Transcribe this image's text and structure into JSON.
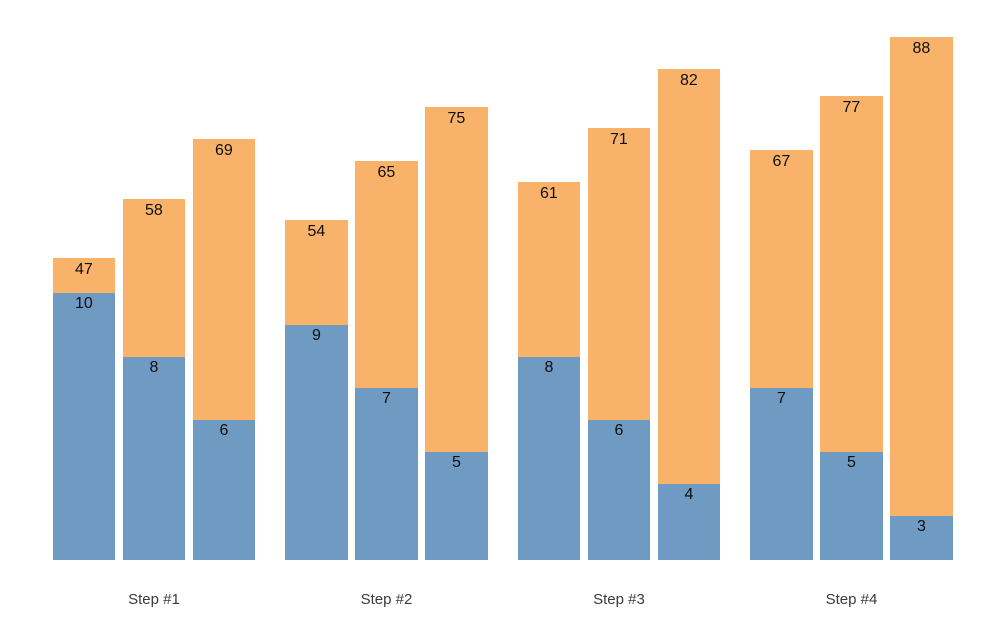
{
  "chart_data": {
    "type": "bar",
    "variant": "grouped-stacked: blue base segment at bottom, orange remainder above; total value labeled at bar top, base value labeled at top of blue segment",
    "title": "",
    "xlabel": "",
    "ylabel": "",
    "axes_visible": false,
    "grid": false,
    "legend_position": "none",
    "background_color": "#ffffff",
    "categories": [
      "Step #1",
      "Step #2",
      "Step #3",
      "Step #4"
    ],
    "bars_per_group": 3,
    "series": [
      {
        "name": "total",
        "color": "#f9b269",
        "values": [
          [
            47,
            58,
            69
          ],
          [
            54,
            65,
            75
          ],
          [
            61,
            71,
            82
          ],
          [
            67,
            77,
            88
          ]
        ]
      },
      {
        "name": "base",
        "color": "#6f9ac1",
        "values": [
          [
            10,
            8,
            6
          ],
          [
            9,
            7,
            5
          ],
          [
            8,
            6,
            4
          ],
          [
            7,
            5,
            3
          ]
        ]
      }
    ],
    "label_color": "#0f0f0f",
    "category_label_color": "#3b3b3b"
  }
}
